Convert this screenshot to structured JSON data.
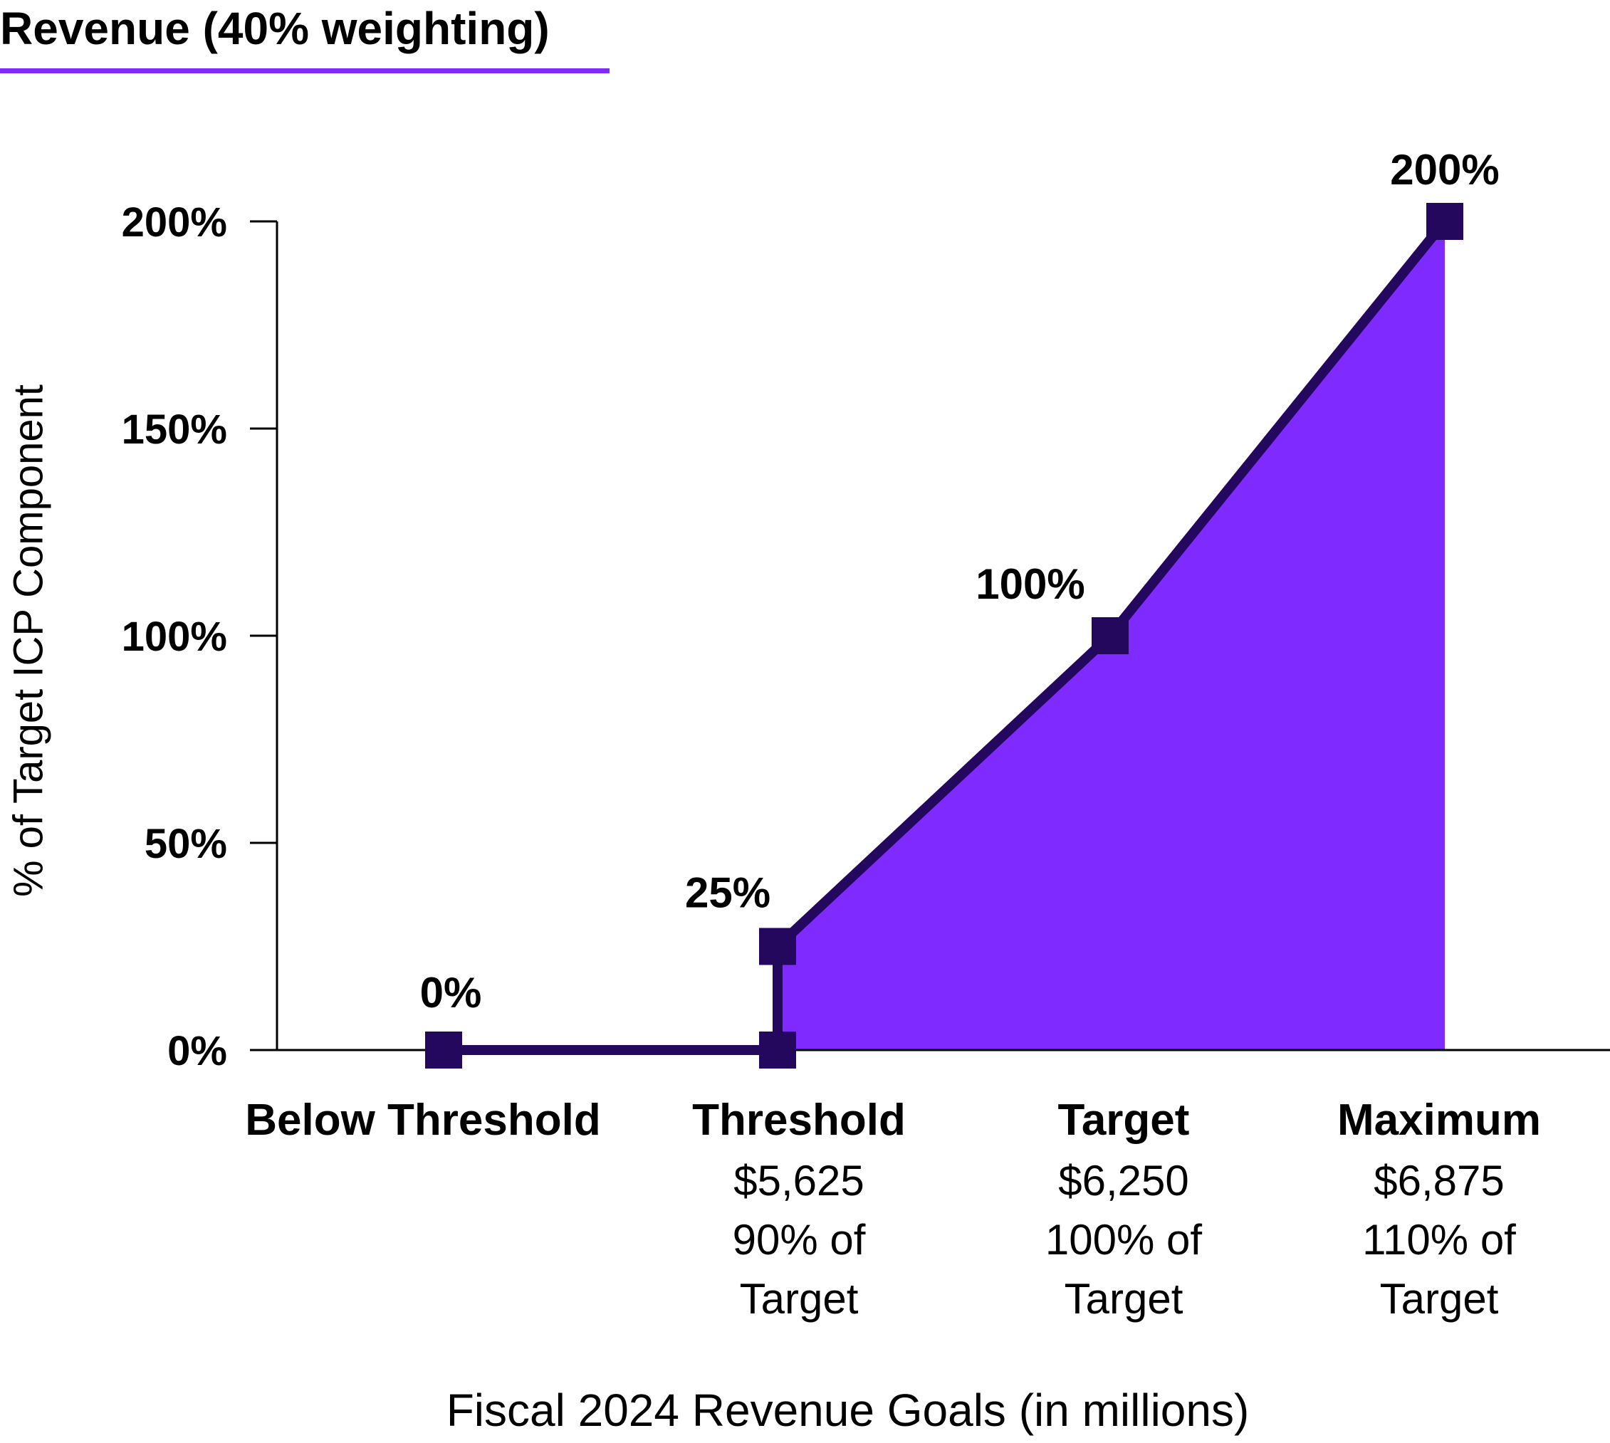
{
  "header": {
    "title": "Revenue (40% weighting)"
  },
  "chart_data": {
    "type": "area",
    "title": "Revenue (40% weighting)",
    "ylabel": "% of Target ICP Component",
    "xlabel": "Fiscal 2024 Revenue Goals (in millions)",
    "ylim": [
      0,
      200
    ],
    "yticks": [
      {
        "value": 0,
        "label": "0%"
      },
      {
        "value": 50,
        "label": "50%"
      },
      {
        "value": 100,
        "label": "100%"
      },
      {
        "value": 150,
        "label": "150%"
      },
      {
        "value": 200,
        "label": "200%"
      }
    ],
    "categories": [
      {
        "name": "Below Threshold",
        "lines": []
      },
      {
        "name": "Threshold",
        "lines": [
          "$5,625",
          "90% of",
          "Target"
        ]
      },
      {
        "name": "Target",
        "lines": [
          "$6,250",
          "100% of",
          "Target"
        ]
      },
      {
        "name": "Maximum",
        "lines": [
          "$6,875",
          "110% of",
          "Target"
        ]
      }
    ],
    "points": [
      {
        "category": 0,
        "y": 0,
        "label": "0%"
      },
      {
        "category": 1,
        "y": 0,
        "label": ""
      },
      {
        "category": 1,
        "y": 25,
        "label": "25%"
      },
      {
        "category": 2,
        "y": 100,
        "label": "100%"
      },
      {
        "category": 3,
        "y": 200,
        "label": "200%"
      }
    ],
    "colors": {
      "line": "#24085e",
      "fill": "#7f2bff",
      "axis": "#000000"
    }
  }
}
